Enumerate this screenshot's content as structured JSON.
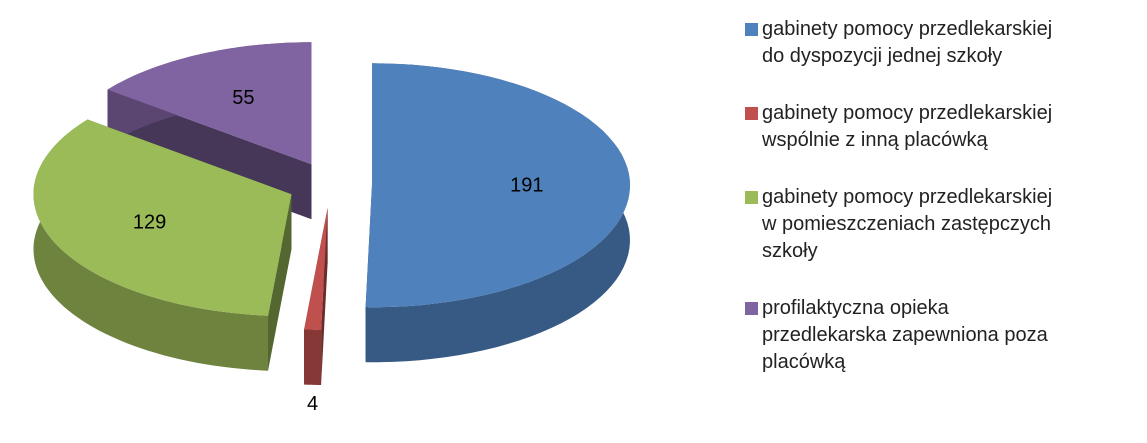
{
  "chart_data": {
    "type": "pie",
    "categories": [
      "gabinety pomocy przedlekarskiej do dyspozycji jednej szkoły",
      "gabinety pomocy przedlekarskiej wspólnie z inną placówką",
      "gabinety pomocy przedlekarskiej w pomieszczeniach zastępczych szkoły",
      "profilaktyczna opieka przedlekarska zapewniona poza placówką"
    ],
    "values": [
      191,
      4,
      129,
      55
    ],
    "colors": [
      "#4f81bd",
      "#c0504d",
      "#9bbb59",
      "#8064a2"
    ],
    "legend": "right"
  }
}
